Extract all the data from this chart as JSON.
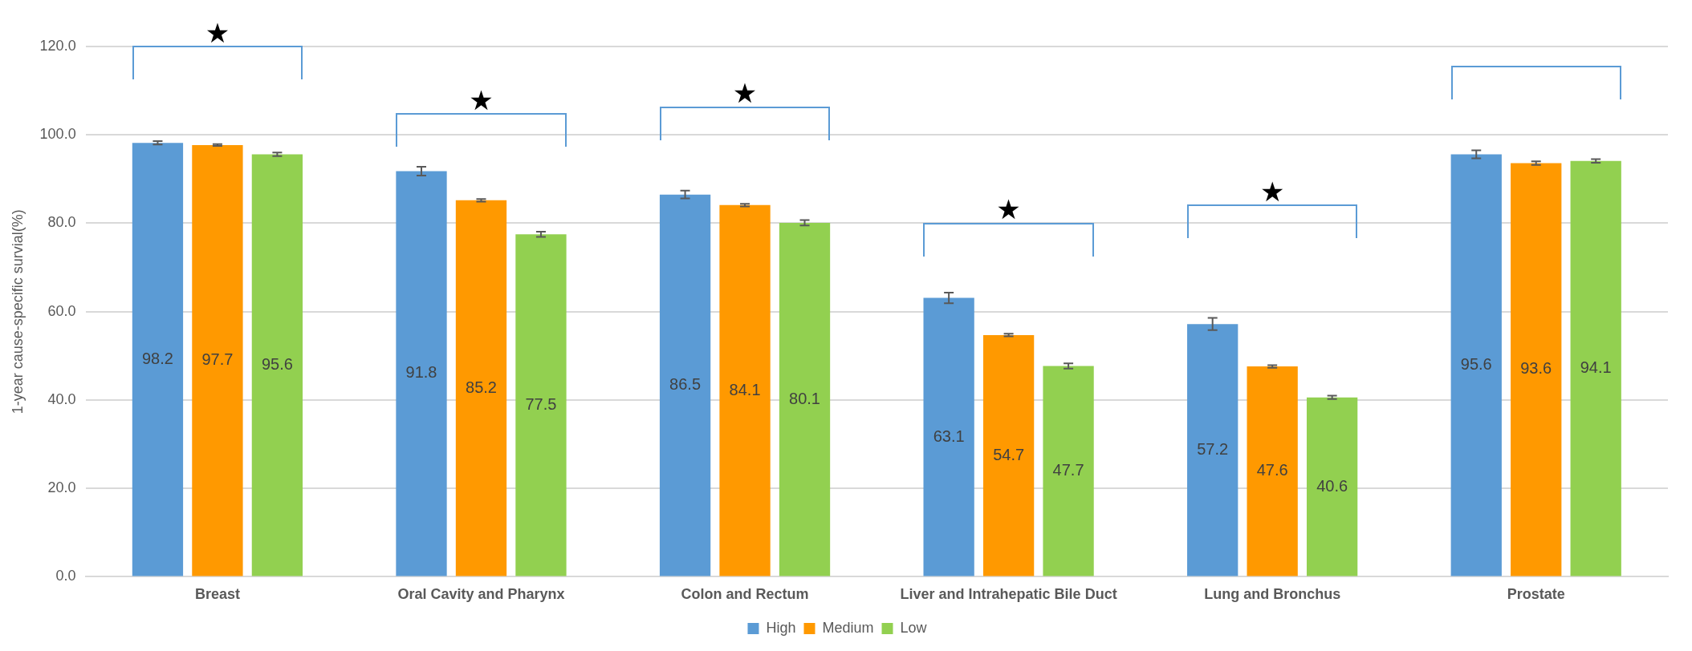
{
  "chart_data": {
    "type": "bar",
    "ylabel": "1-year cause-specific survial(%)",
    "categories": [
      "Breast",
      "Oral Cavity and Pharynx",
      "Colon and Rectum",
      "Liver and Intrahepatic Bile Duct",
      "Lung and Bronchus",
      "Prostate"
    ],
    "series": [
      {
        "name": "High",
        "color": "#5b9bd5",
        "values": [
          98.2,
          91.8,
          86.5,
          63.1,
          57.2,
          95.6
        ],
        "errors": [
          0.4,
          1.0,
          0.9,
          1.2,
          1.4,
          0.9
        ]
      },
      {
        "name": "Medium",
        "color": "#ff9900",
        "values": [
          97.7,
          85.2,
          84.1,
          54.7,
          47.6,
          93.6
        ],
        "errors": [
          0.2,
          0.3,
          0.3,
          0.3,
          0.3,
          0.4
        ]
      },
      {
        "name": "Low",
        "color": "#92d050",
        "values": [
          95.6,
          77.5,
          80.1,
          47.7,
          40.6,
          94.1
        ],
        "errors": [
          0.4,
          0.6,
          0.6,
          0.6,
          0.4,
          0.4
        ]
      }
    ],
    "ylim": [
      0,
      120
    ],
    "yticks": [
      {
        "value": 0,
        "label": "0.0"
      },
      {
        "value": 20,
        "label": "20.0"
      },
      {
        "value": 40,
        "label": "40.0"
      },
      {
        "value": 60,
        "label": "60.0"
      },
      {
        "value": 80,
        "label": "80.0"
      },
      {
        "value": 100,
        "label": "100.0"
      },
      {
        "value": 120,
        "label": "120.0"
      }
    ],
    "grid": "y",
    "legend": "bottom",
    "data_labels": true,
    "annotations": [
      "★",
      "★",
      "★",
      "★",
      "★"
    ]
  }
}
